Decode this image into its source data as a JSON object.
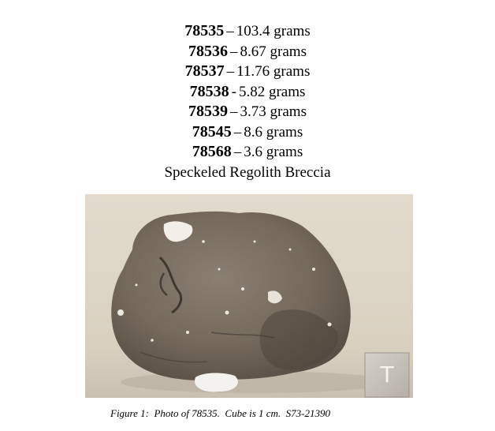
{
  "samples": [
    {
      "id": "78535",
      "sep": "–",
      "mass": "103.4 grams"
    },
    {
      "id": "78536",
      "sep": "–",
      "mass": "8.67 grams"
    },
    {
      "id": "78537",
      "sep": "–",
      "mass": "11.76 grams"
    },
    {
      "id": "78538",
      "sep": "-",
      "mass": "5.82 grams"
    },
    {
      "id": "78539",
      "sep": "–",
      "mass": "3.73 grams"
    },
    {
      "id": "78545",
      "sep": "–",
      "mass": "8.6 grams"
    },
    {
      "id": "78568",
      "sep": "–",
      "mass": "3.6 grams"
    }
  ],
  "rock_type": "Speckeled Regolith Breccia",
  "photo": {
    "cube_label": "T",
    "colors": {
      "background": "#ddd5c6",
      "rock": "#7a6f62",
      "rock_dark": "#4a4038",
      "clast": "#f2efe8",
      "cube": "#cbc6bf"
    }
  },
  "caption": "Figure 1:  Photo of 78535.  Cube is 1 cm.  S73-21390"
}
